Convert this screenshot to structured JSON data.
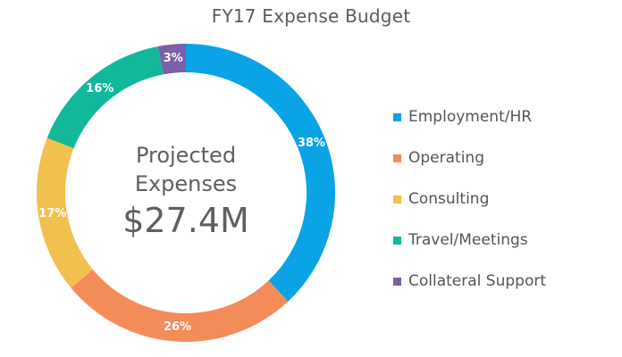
{
  "chart_data": {
    "type": "pie",
    "title": "FY17 Expense Budget",
    "center_label": "Projected Expenses",
    "center_value": "$27.4M",
    "legend_position": "right",
    "slices": [
      {
        "name": "Employment/HR",
        "value": 38,
        "label": "38%",
        "color": "#0aa4e6"
      },
      {
        "name": "Operating",
        "value": 26,
        "label": "26%",
        "color": "#f48c5a"
      },
      {
        "name": "Consulting",
        "value": 17,
        "label": "17%",
        "color": "#f2c04f"
      },
      {
        "name": "Travel/Meetings",
        "value": 16,
        "label": "16%",
        "color": "#11b89a"
      },
      {
        "name": "Collateral Support",
        "value": 3,
        "label": "3%",
        "color": "#7c5fa9"
      }
    ]
  }
}
